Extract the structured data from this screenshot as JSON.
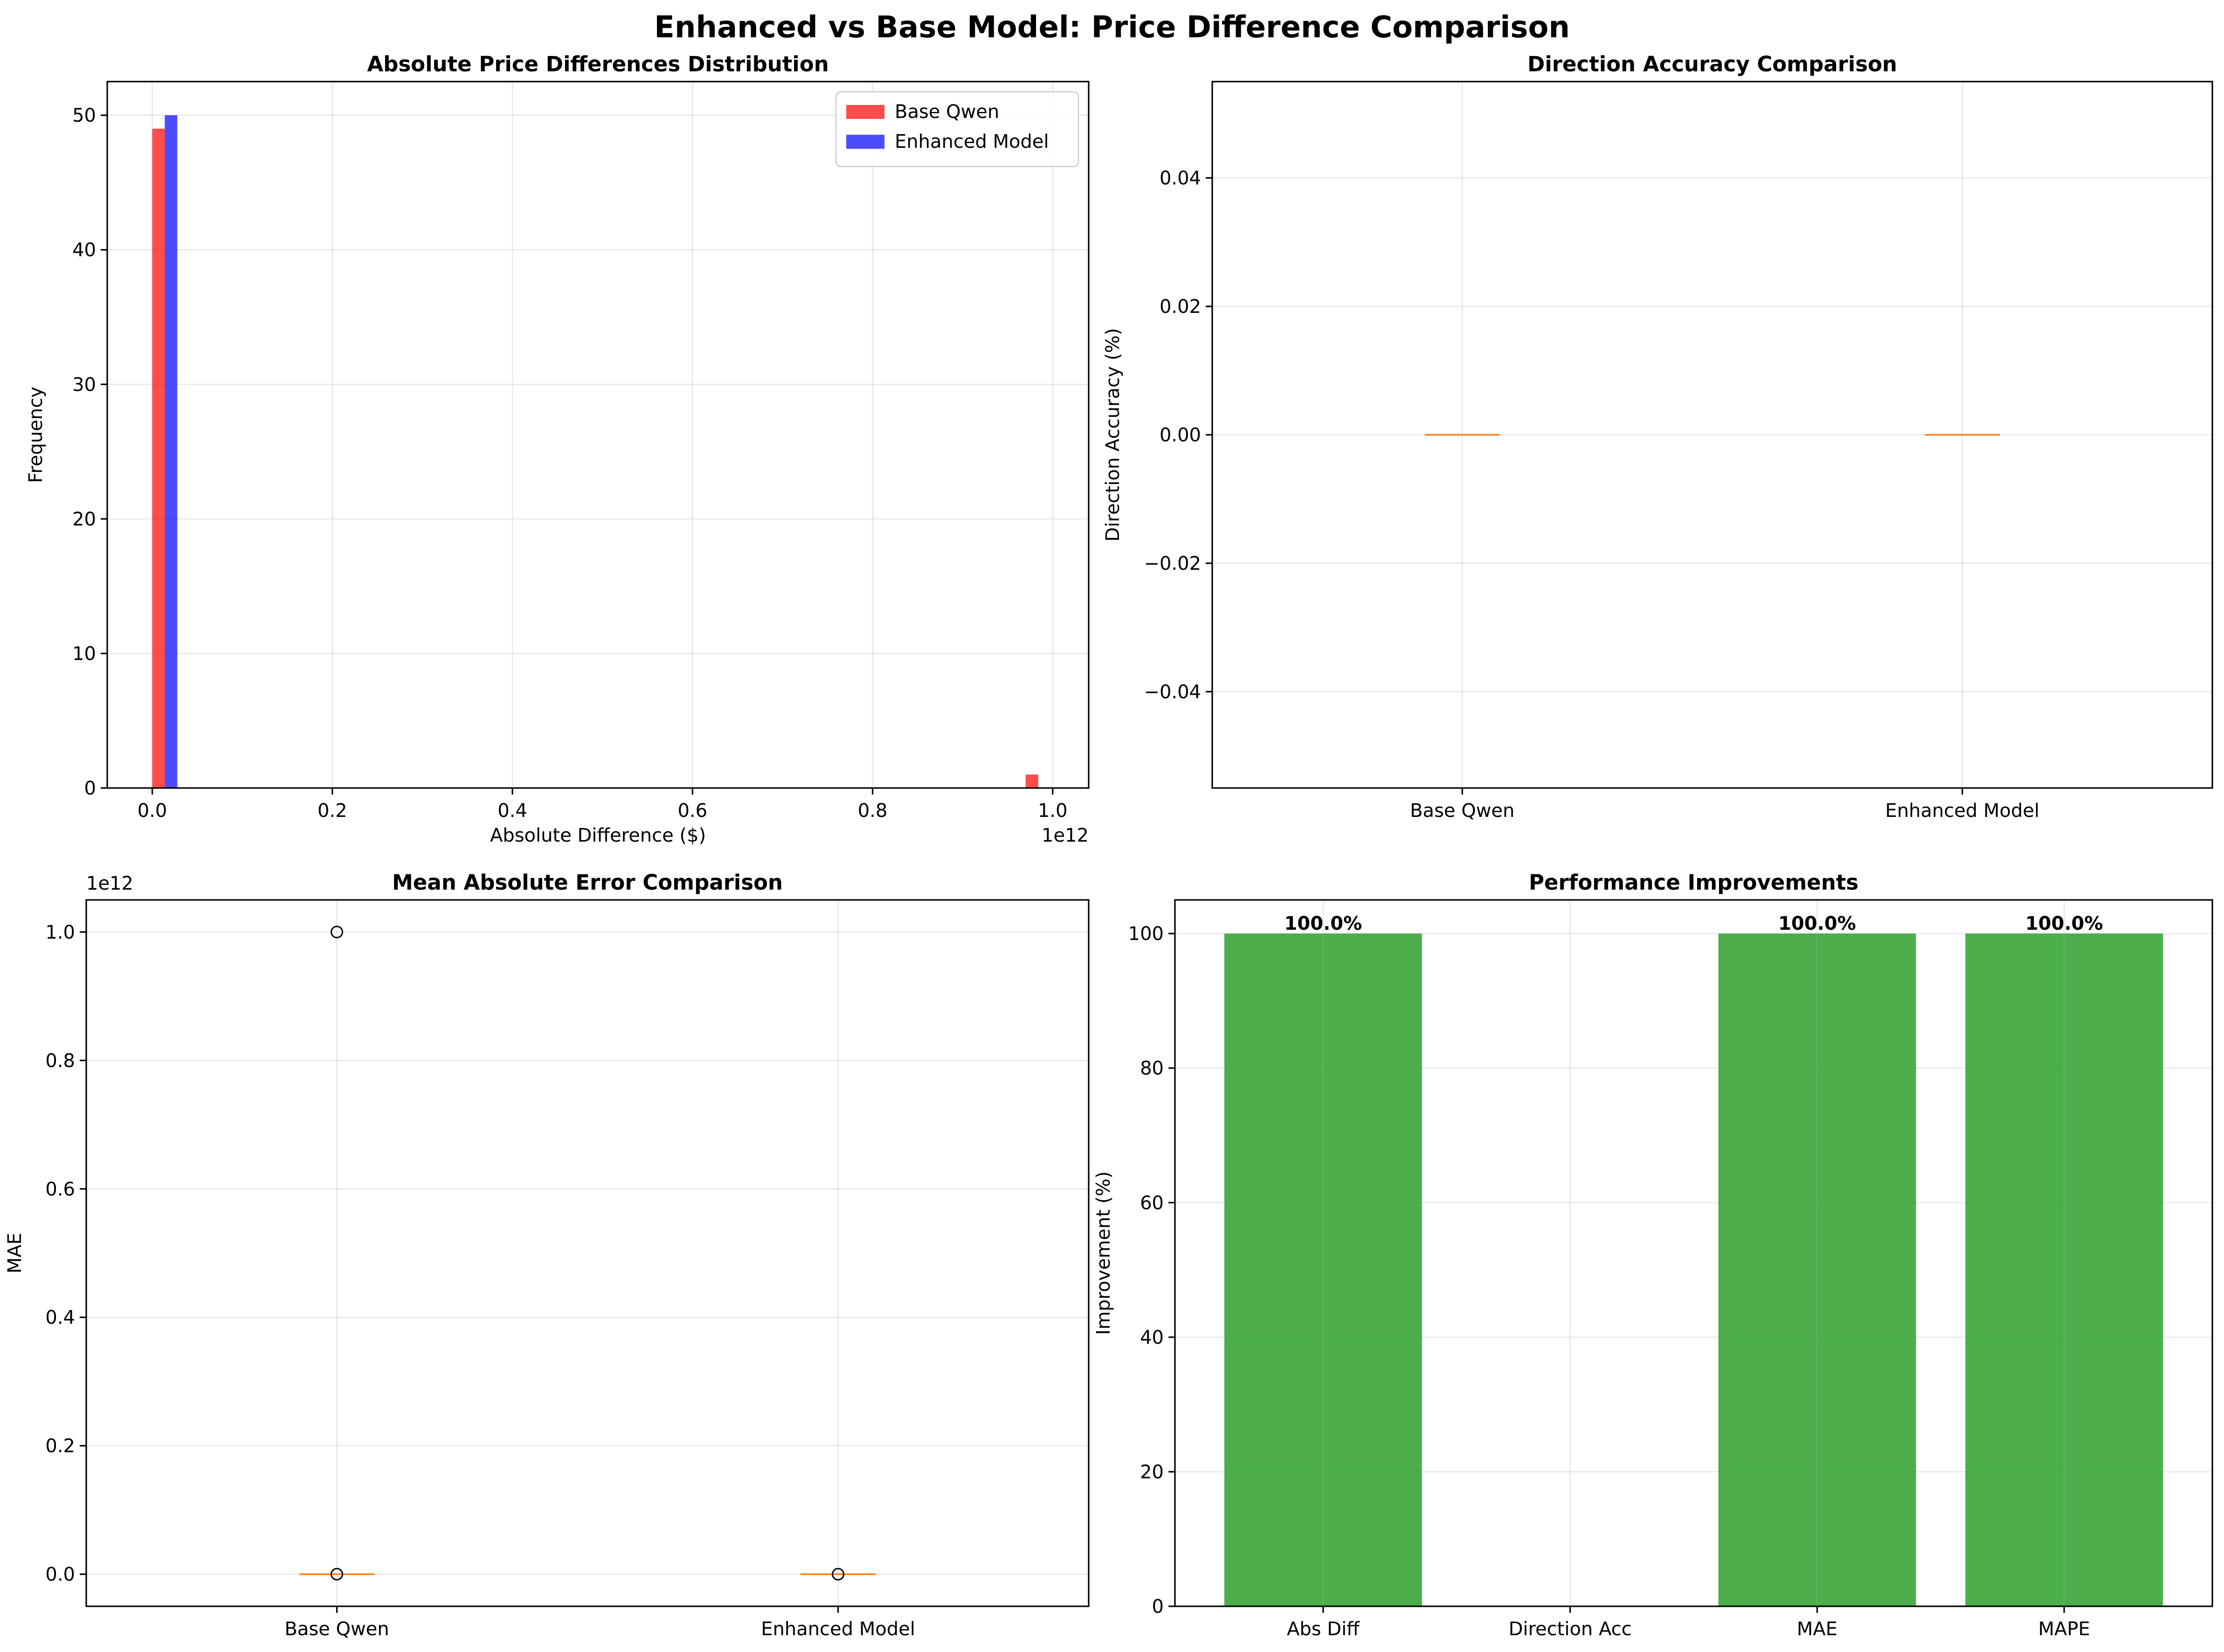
{
  "figure": {
    "title": "Enhanced vs Base Model: Price Difference Comparison"
  },
  "chart_data": [
    {
      "type": "bar",
      "title": "Absolute Price Differences Distribution",
      "xlabel": "Absolute Difference ($)",
      "ylabel": "Frequency",
      "x_offset_label": "1e12",
      "x_scale": 1000000000000.0,
      "xlim": [
        -0.05,
        1.04
      ],
      "ylim": [
        0,
        52.5
      ],
      "xticks": [
        0.0,
        0.2,
        0.4,
        0.6,
        0.8,
        1.0
      ],
      "xtick_labels": [
        "0.0",
        "0.2",
        "0.4",
        "0.6",
        "0.8",
        "1.0"
      ],
      "yticks": [
        0,
        10,
        20,
        30,
        40,
        50
      ],
      "grid": true,
      "legend": "top-right",
      "series": [
        {
          "name": "Base Qwen",
          "color": "#ff0000",
          "opacity": 0.7,
          "bins": [
            {
              "x0": 0.0,
              "x1": 0.0139,
              "value": 49
            },
            {
              "x0": 0.97,
              "x1": 0.984,
              "value": 1
            }
          ]
        },
        {
          "name": "Enhanced Model",
          "color": "#0000ff",
          "opacity": 0.7,
          "bins": [
            {
              "x0": 0.0139,
              "x1": 0.0278,
              "value": 50
            }
          ]
        }
      ]
    },
    {
      "type": "box",
      "title": "Direction Accuracy Comparison",
      "xlabel": "",
      "ylabel": "Direction Accuracy (%)",
      "categories": [
        "Base Qwen",
        "Enhanced Model"
      ],
      "ylim": [
        -0.055,
        0.055
      ],
      "yticks": [
        -0.04,
        -0.02,
        0.0,
        0.02,
        0.04
      ],
      "ytick_labels": [
        "−0.04",
        "−0.02",
        "0.00",
        "0.02",
        "0.04"
      ],
      "grid": true,
      "boxes": [
        {
          "name": "Base Qwen",
          "min": 0,
          "q1": 0,
          "median": 0,
          "q3": 0,
          "max": 0,
          "outliers": []
        },
        {
          "name": "Enhanced Model",
          "min": 0,
          "q1": 0,
          "median": 0,
          "q3": 0,
          "max": 0,
          "outliers": []
        }
      ],
      "median_color": "#ff7f0e"
    },
    {
      "type": "box",
      "title": "Mean Absolute Error Comparison",
      "xlabel": "",
      "ylabel": "MAE",
      "y_offset_label": "1e12",
      "y_scale": 1000000000000.0,
      "categories": [
        "Base Qwen",
        "Enhanced Model"
      ],
      "ylim": [
        -0.05,
        1.05
      ],
      "yticks": [
        0.0,
        0.2,
        0.4,
        0.6,
        0.8,
        1.0
      ],
      "ytick_labels": [
        "0.0",
        "0.2",
        "0.4",
        "0.6",
        "0.8",
        "1.0"
      ],
      "grid": true,
      "boxes": [
        {
          "name": "Base Qwen",
          "min": 0,
          "q1": 0,
          "median": 0,
          "q3": 0,
          "max": 0,
          "outliers": [
            1.0,
            0.0
          ]
        },
        {
          "name": "Enhanced Model",
          "min": 0,
          "q1": 0,
          "median": 0,
          "q3": 0,
          "max": 0,
          "outliers": [
            0.0
          ]
        }
      ],
      "median_color": "#ff7f0e"
    },
    {
      "type": "bar",
      "title": "Performance Improvements",
      "xlabel": "",
      "ylabel": "Improvement (%)",
      "categories": [
        "Abs Diff",
        "Direction Acc",
        "MAE",
        "MAPE"
      ],
      "values": [
        100.0,
        0.0,
        100.0,
        100.0
      ],
      "value_labels": [
        "100.0%",
        "",
        "100.0%",
        "100.0%"
      ],
      "ylim": [
        0,
        105
      ],
      "yticks": [
        0,
        20,
        40,
        60,
        80,
        100
      ],
      "grid": true,
      "color": "#2ca02c"
    }
  ]
}
